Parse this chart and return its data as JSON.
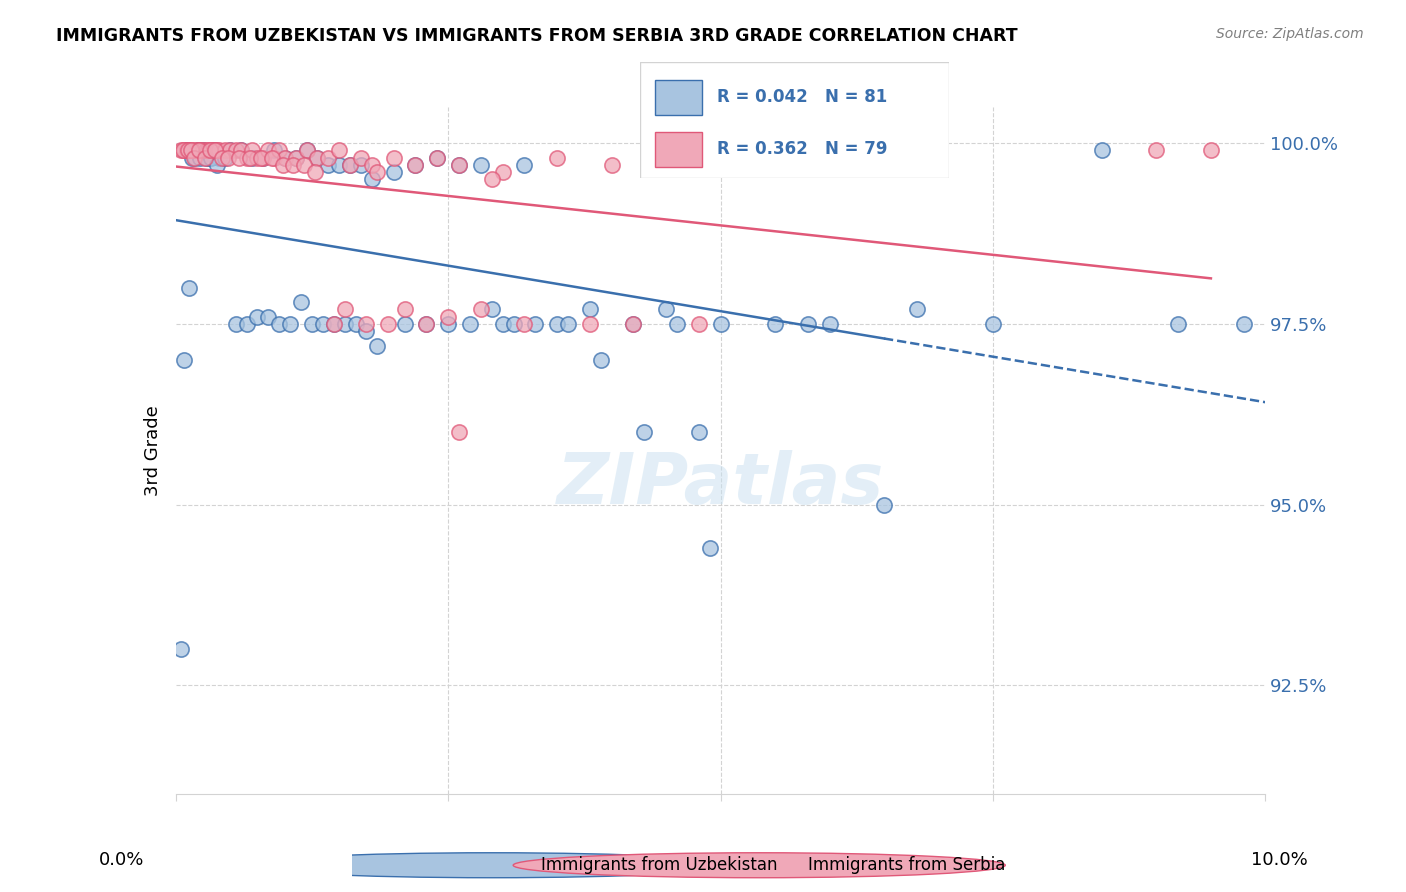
{
  "title": "IMMIGRANTS FROM UZBEKISTAN VS IMMIGRANTS FROM SERBIA 3RD GRADE CORRELATION CHART",
  "source": "Source: ZipAtlas.com",
  "ylabel": "3rd Grade",
  "ytick_labels": [
    "100.0%",
    "97.5%",
    "95.0%",
    "92.5%"
  ],
  "ytick_values": [
    1.0,
    0.975,
    0.95,
    0.925
  ],
  "xlim": [
    0.0,
    10.0
  ],
  "ylim": [
    0.91,
    1.005
  ],
  "blue_color": "#a8c4e0",
  "pink_color": "#f0a8b8",
  "blue_line_color": "#3a6fad",
  "pink_line_color": "#e05878",
  "legend_text_color": "#3a6fad",
  "watermark": "ZIPatlas",
  "uzbekistan_x": [
    0.1,
    0.15,
    0.2,
    0.25,
    0.3,
    0.35,
    0.4,
    0.5,
    0.6,
    0.7,
    0.8,
    0.9,
    1.0,
    1.1,
    1.2,
    1.3,
    1.4,
    1.5,
    1.6,
    1.7,
    1.8,
    2.0,
    2.2,
    2.4,
    2.6,
    2.8,
    3.0,
    3.2,
    3.5,
    3.8,
    4.2,
    4.5,
    4.8,
    5.5,
    6.0,
    6.8,
    8.5,
    0.05,
    0.08,
    0.12,
    0.18,
    0.22,
    0.28,
    0.32,
    0.38,
    0.45,
    0.55,
    0.65,
    0.75,
    0.85,
    0.95,
    1.05,
    1.15,
    1.25,
    1.35,
    1.45,
    1.55,
    1.65,
    1.75,
    1.85,
    2.1,
    2.3,
    2.5,
    2.7,
    2.9,
    3.1,
    3.3,
    3.6,
    3.9,
    4.3,
    4.6,
    5.0,
    5.8,
    6.5,
    7.5,
    9.2,
    9.8,
    4.9
  ],
  "uzbekistan_y": [
    0.999,
    0.998,
    0.999,
    0.999,
    0.998,
    0.999,
    0.998,
    0.999,
    0.999,
    0.998,
    0.998,
    0.999,
    0.998,
    0.998,
    0.999,
    0.998,
    0.997,
    0.997,
    0.997,
    0.997,
    0.995,
    0.996,
    0.997,
    0.998,
    0.997,
    0.997,
    0.975,
    0.997,
    0.975,
    0.977,
    0.975,
    0.977,
    0.96,
    0.975,
    0.975,
    0.977,
    0.999,
    0.93,
    0.97,
    0.98,
    0.998,
    0.998,
    0.998,
    0.998,
    0.997,
    0.998,
    0.975,
    0.975,
    0.976,
    0.976,
    0.975,
    0.975,
    0.978,
    0.975,
    0.975,
    0.975,
    0.975,
    0.975,
    0.974,
    0.972,
    0.975,
    0.975,
    0.975,
    0.975,
    0.977,
    0.975,
    0.975,
    0.975,
    0.97,
    0.96,
    0.975,
    0.975,
    0.975,
    0.95,
    0.975,
    0.975,
    0.975,
    0.944
  ],
  "serbia_x": [
    0.05,
    0.08,
    0.1,
    0.12,
    0.15,
    0.18,
    0.2,
    0.22,
    0.25,
    0.28,
    0.3,
    0.32,
    0.35,
    0.38,
    0.4,
    0.45,
    0.5,
    0.55,
    0.6,
    0.65,
    0.7,
    0.75,
    0.8,
    0.85,
    0.9,
    0.95,
    1.0,
    1.1,
    1.2,
    1.3,
    1.4,
    1.5,
    1.6,
    1.7,
    1.8,
    2.0,
    2.2,
    2.4,
    2.6,
    3.0,
    3.5,
    4.0,
    4.5,
    5.0,
    0.07,
    0.11,
    0.14,
    0.17,
    0.21,
    0.27,
    0.31,
    0.36,
    0.42,
    0.48,
    0.58,
    0.68,
    0.78,
    0.88,
    0.98,
    1.08,
    1.18,
    1.28,
    1.45,
    1.55,
    1.75,
    1.95,
    2.1,
    2.3,
    2.5,
    2.8,
    3.2,
    3.8,
    4.2,
    9.0,
    9.5,
    4.8,
    1.85,
    2.6,
    2.9
  ],
  "serbia_y": [
    0.999,
    0.999,
    0.999,
    0.999,
    0.999,
    0.999,
    0.999,
    0.999,
    0.999,
    0.999,
    0.999,
    0.999,
    0.999,
    0.999,
    0.999,
    0.999,
    0.999,
    0.999,
    0.999,
    0.998,
    0.999,
    0.998,
    0.998,
    0.999,
    0.998,
    0.999,
    0.998,
    0.998,
    0.999,
    0.998,
    0.998,
    0.999,
    0.997,
    0.998,
    0.997,
    0.998,
    0.997,
    0.998,
    0.997,
    0.996,
    0.998,
    0.997,
    0.997,
    0.997,
    0.999,
    0.999,
    0.999,
    0.998,
    0.999,
    0.998,
    0.999,
    0.999,
    0.998,
    0.998,
    0.998,
    0.998,
    0.998,
    0.998,
    0.997,
    0.997,
    0.997,
    0.996,
    0.975,
    0.977,
    0.975,
    0.975,
    0.977,
    0.975,
    0.976,
    0.977,
    0.975,
    0.975,
    0.975,
    0.999,
    0.999,
    0.975,
    0.996,
    0.96,
    0.995
  ]
}
